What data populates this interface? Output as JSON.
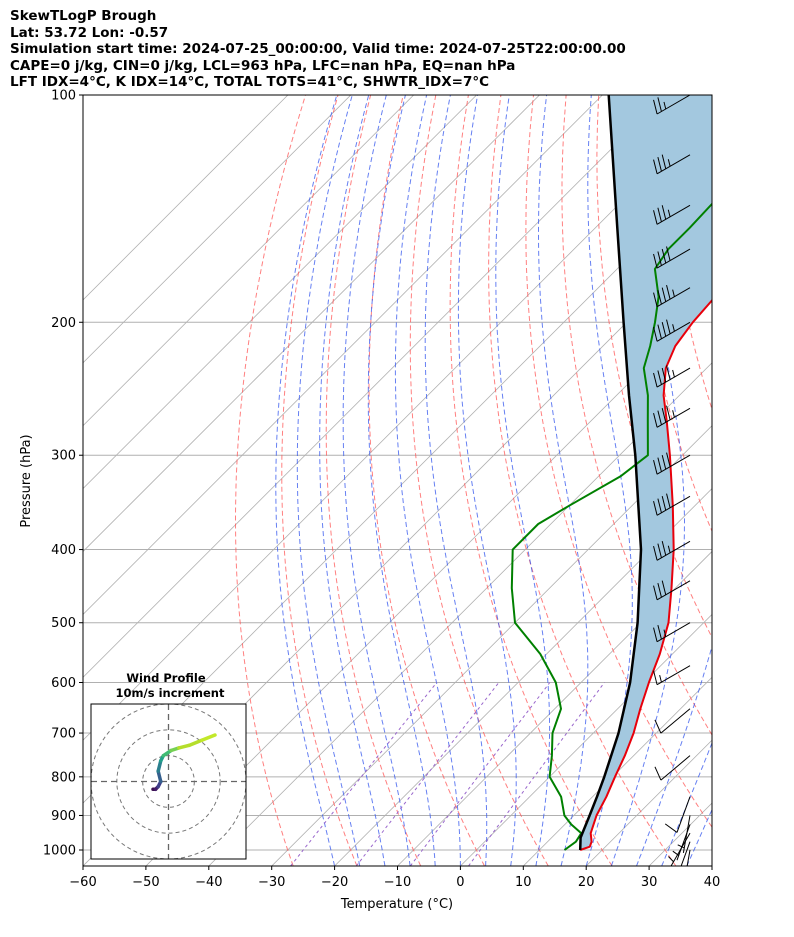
{
  "header": {
    "line1": "SkewTLogP Brough",
    "line2": "Lat: 53.72   Lon: -0.57",
    "line3": "Simulation start time: 2024-07-25_00:00:00, Valid time: 2024-07-25T22:00:00.00",
    "line4": "CAPE=0 j/kg, CIN=0 j/kg, LCL=963 hPa, LFC=nan hPa, EQ=nan hPa",
    "line5": "LFT IDX=4°C, K IDX=14°C, TOTAL TOTS=41°C, SHWTR_IDX=7°C"
  },
  "chart_data": [
    {
      "type": "line",
      "title": "",
      "xlabel": "Temperature (°C)",
      "ylabel": "Pressure (hPa)",
      "xlim": [
        -60,
        40
      ],
      "ylim": [
        1050,
        100
      ],
      "y_scale": "log",
      "skew": true,
      "x_ticks": [
        "−60",
        "−50",
        "−40",
        "−30",
        "−20",
        "−10",
        "0",
        "10",
        "20",
        "30",
        "40"
      ],
      "y_ticks": [
        "100",
        "200",
        "300",
        "400",
        "500",
        "600",
        "700",
        "800",
        "900",
        "1000"
      ],
      "grid": true,
      "colors": {
        "temperature": "#e8000b",
        "dewpoint": "#008000",
        "parcel": "#000000",
        "cape_fill": "#a3c8df",
        "dry_adiabat": "#ff5555",
        "moist_adiabat": "#3355ee",
        "mixing_ratio": "#9966cc",
        "isotherm": "#b0b0b0"
      },
      "series": [
        {
          "name": "temperature",
          "points": [
            [
              1000,
              16.5
            ],
            [
              990,
              17.5
            ],
            [
              975,
              17
            ],
            [
              950,
              15.5
            ],
            [
              900,
              13.6
            ],
            [
              850,
              12.2
            ],
            [
              800,
              10.4
            ],
            [
              750,
              8.6
            ],
            [
              700,
              6.4
            ],
            [
              650,
              3.6
            ],
            [
              600,
              0.8
            ],
            [
              550,
              -2.0
            ],
            [
              500,
              -5.6
            ],
            [
              450,
              -10.6
            ],
            [
              400,
              -16.4
            ],
            [
              350,
              -23.5
            ],
            [
              300,
              -32
            ],
            [
              270,
              -38
            ],
            [
              250,
              -42.5
            ],
            [
              230,
              -46.5
            ],
            [
              215,
              -48.5
            ],
            [
              200,
              -49.5
            ],
            [
              185,
              -50
            ],
            [
              170,
              -50.5
            ],
            [
              160,
              -51.5
            ],
            [
              150,
              -52.5
            ],
            [
              140,
              -53
            ],
            [
              130,
              -53.5
            ],
            [
              120,
              -54
            ],
            [
              110,
              -54
            ],
            [
              100,
              -54
            ]
          ]
        },
        {
          "name": "dewpoint",
          "points": [
            [
              1000,
              14
            ],
            [
              975,
              14.5
            ],
            [
              950,
              14
            ],
            [
              925,
              11
            ],
            [
              900,
              8.5
            ],
            [
              850,
              5
            ],
            [
              800,
              0
            ],
            [
              750,
              -3
            ],
            [
              700,
              -6.5
            ],
            [
              650,
              -9
            ],
            [
              600,
              -14
            ],
            [
              550,
              -21
            ],
            [
              500,
              -30
            ],
            [
              450,
              -36
            ],
            [
              400,
              -42
            ],
            [
              370,
              -42
            ],
            [
              350,
              -40
            ],
            [
              320,
              -36.5
            ],
            [
              300,
              -35.5
            ],
            [
              270,
              -41
            ],
            [
              250,
              -45
            ],
            [
              230,
              -50
            ],
            [
              215,
              -52.5
            ],
            [
              200,
              -55.5
            ],
            [
              185,
              -59
            ],
            [
              170,
              -64
            ],
            [
              160,
              -65
            ],
            [
              150,
              -65
            ],
            [
              130,
              -65.5
            ],
            [
              120,
              -66
            ],
            [
              100,
              -67
            ]
          ]
        },
        {
          "name": "parcel",
          "points": [
            [
              1000,
              16.5
            ],
            [
              963,
              14.6
            ],
            [
              900,
              12.5
            ],
            [
              850,
              10.7
            ],
            [
              800,
              8.7
            ],
            [
              700,
              4.0
            ],
            [
              600,
              -2.2
            ],
            [
              500,
              -10.5
            ],
            [
              400,
              -21.6
            ],
            [
              300,
              -37.5
            ],
            [
              250,
              -48
            ],
            [
              200,
              -60.5
            ],
            [
              150,
              -76.5
            ],
            [
              100,
              -99
            ]
          ]
        }
      ],
      "wind_barbs": {
        "pressures": [
          100,
          120,
          140,
          160,
          180,
          200,
          230,
          260,
          300,
          340,
          390,
          440,
          500,
          570,
          650,
          750,
          850,
          900,
          925,
          950,
          975,
          1000
        ],
        "speeds_kt": [
          25,
          35,
          35,
          40,
          45,
          45,
          45,
          45,
          40,
          40,
          35,
          30,
          25,
          15,
          10,
          10,
          10,
          5,
          5,
          5,
          5,
          5
        ],
        "directions_deg": [
          240,
          240,
          240,
          240,
          240,
          240,
          240,
          240,
          240,
          240,
          240,
          240,
          240,
          240,
          230,
          230,
          200,
          190,
          200,
          210,
          200,
          190
        ]
      }
    },
    {
      "type": "line",
      "title": "Wind Profile",
      "subtitle": "10m/s increment",
      "xlim": [
        -30,
        30
      ],
      "ylim": [
        -30,
        30
      ],
      "grid": true,
      "series": [
        {
          "name": "hodograph",
          "u": [
            -6,
            -5,
            -4,
            -3,
            -4,
            -3,
            -2,
            1,
            4,
            8,
            13,
            18
          ],
          "v": [
            -3,
            -3,
            -2,
            0,
            4,
            8,
            10,
            12,
            13,
            14,
            16,
            18
          ]
        }
      ]
    }
  ]
}
